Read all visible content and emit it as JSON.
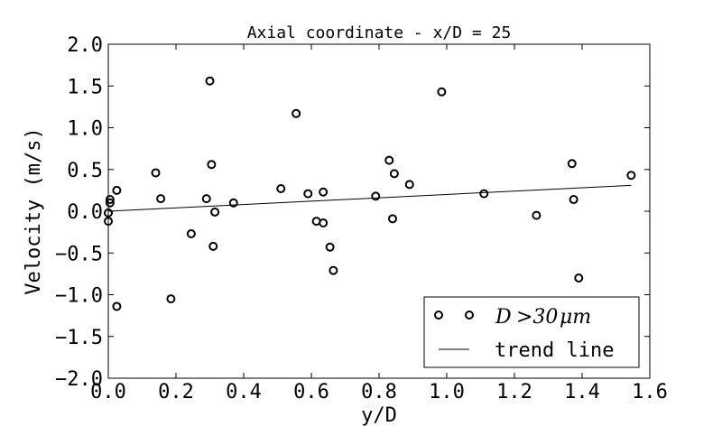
{
  "chart_data": {
    "type": "scatter",
    "title": "Axial coordinate - x/D = 25",
    "xlabel": "y/D",
    "ylabel": "Velocity (m/s)",
    "xlim": [
      0.0,
      1.6
    ],
    "ylim": [
      -2.0,
      2.0
    ],
    "xticks": [
      0.0,
      0.2,
      0.4,
      0.6,
      0.8,
      1.0,
      1.2,
      1.4,
      1.6
    ],
    "xtick_labels": [
      "0.0",
      "0.2",
      "0.4",
      "0.6",
      "0.8",
      "1.0",
      "1.2",
      "1.4",
      "1.6"
    ],
    "yticks": [
      -2.0,
      -1.5,
      -1.0,
      -0.5,
      0.0,
      0.5,
      1.0,
      1.5,
      2.0
    ],
    "ytick_labels": [
      "−2.0",
      "−1.5",
      "−1.0",
      "−0.5",
      "0.0",
      "0.5",
      "1.0",
      "1.5",
      "2.0"
    ],
    "grid": false,
    "legend_position": "lower-right",
    "series": [
      {
        "name": "D >30 μm",
        "kind": "points",
        "marker": "open-circle",
        "points": [
          [
            0.0,
            -0.12
          ],
          [
            0.0,
            -0.02
          ],
          [
            0.005,
            0.1
          ],
          [
            0.005,
            0.14
          ],
          [
            0.025,
            0.25
          ],
          [
            0.025,
            -1.14
          ],
          [
            0.14,
            0.46
          ],
          [
            0.155,
            0.15
          ],
          [
            0.185,
            -1.05
          ],
          [
            0.245,
            -0.27
          ],
          [
            0.29,
            0.15
          ],
          [
            0.3,
            1.56
          ],
          [
            0.305,
            0.56
          ],
          [
            0.31,
            -0.42
          ],
          [
            0.315,
            -0.01
          ],
          [
            0.37,
            0.1
          ],
          [
            0.51,
            0.27
          ],
          [
            0.59,
            0.21
          ],
          [
            0.555,
            1.17
          ],
          [
            0.615,
            -0.12
          ],
          [
            0.635,
            -0.14
          ],
          [
            0.635,
            0.23
          ],
          [
            0.655,
            -0.43
          ],
          [
            0.665,
            -0.71
          ],
          [
            0.79,
            0.18
          ],
          [
            0.83,
            0.61
          ],
          [
            0.84,
            -0.09
          ],
          [
            0.845,
            0.45
          ],
          [
            0.89,
            0.32
          ],
          [
            0.985,
            1.43
          ],
          [
            1.11,
            0.21
          ],
          [
            1.265,
            -0.05
          ],
          [
            1.37,
            0.57
          ],
          [
            1.375,
            0.14
          ],
          [
            1.39,
            -0.8
          ],
          [
            1.545,
            0.43
          ]
        ]
      },
      {
        "name": "trend line",
        "kind": "line",
        "points": [
          [
            0.0,
            0.0
          ],
          [
            1.545,
            0.31
          ]
        ]
      }
    ],
    "legend_labels": {
      "d_symbol": "D",
      "gt_symbol": ">30",
      "mu_unit": "μm",
      "trend": "trend line"
    }
  }
}
